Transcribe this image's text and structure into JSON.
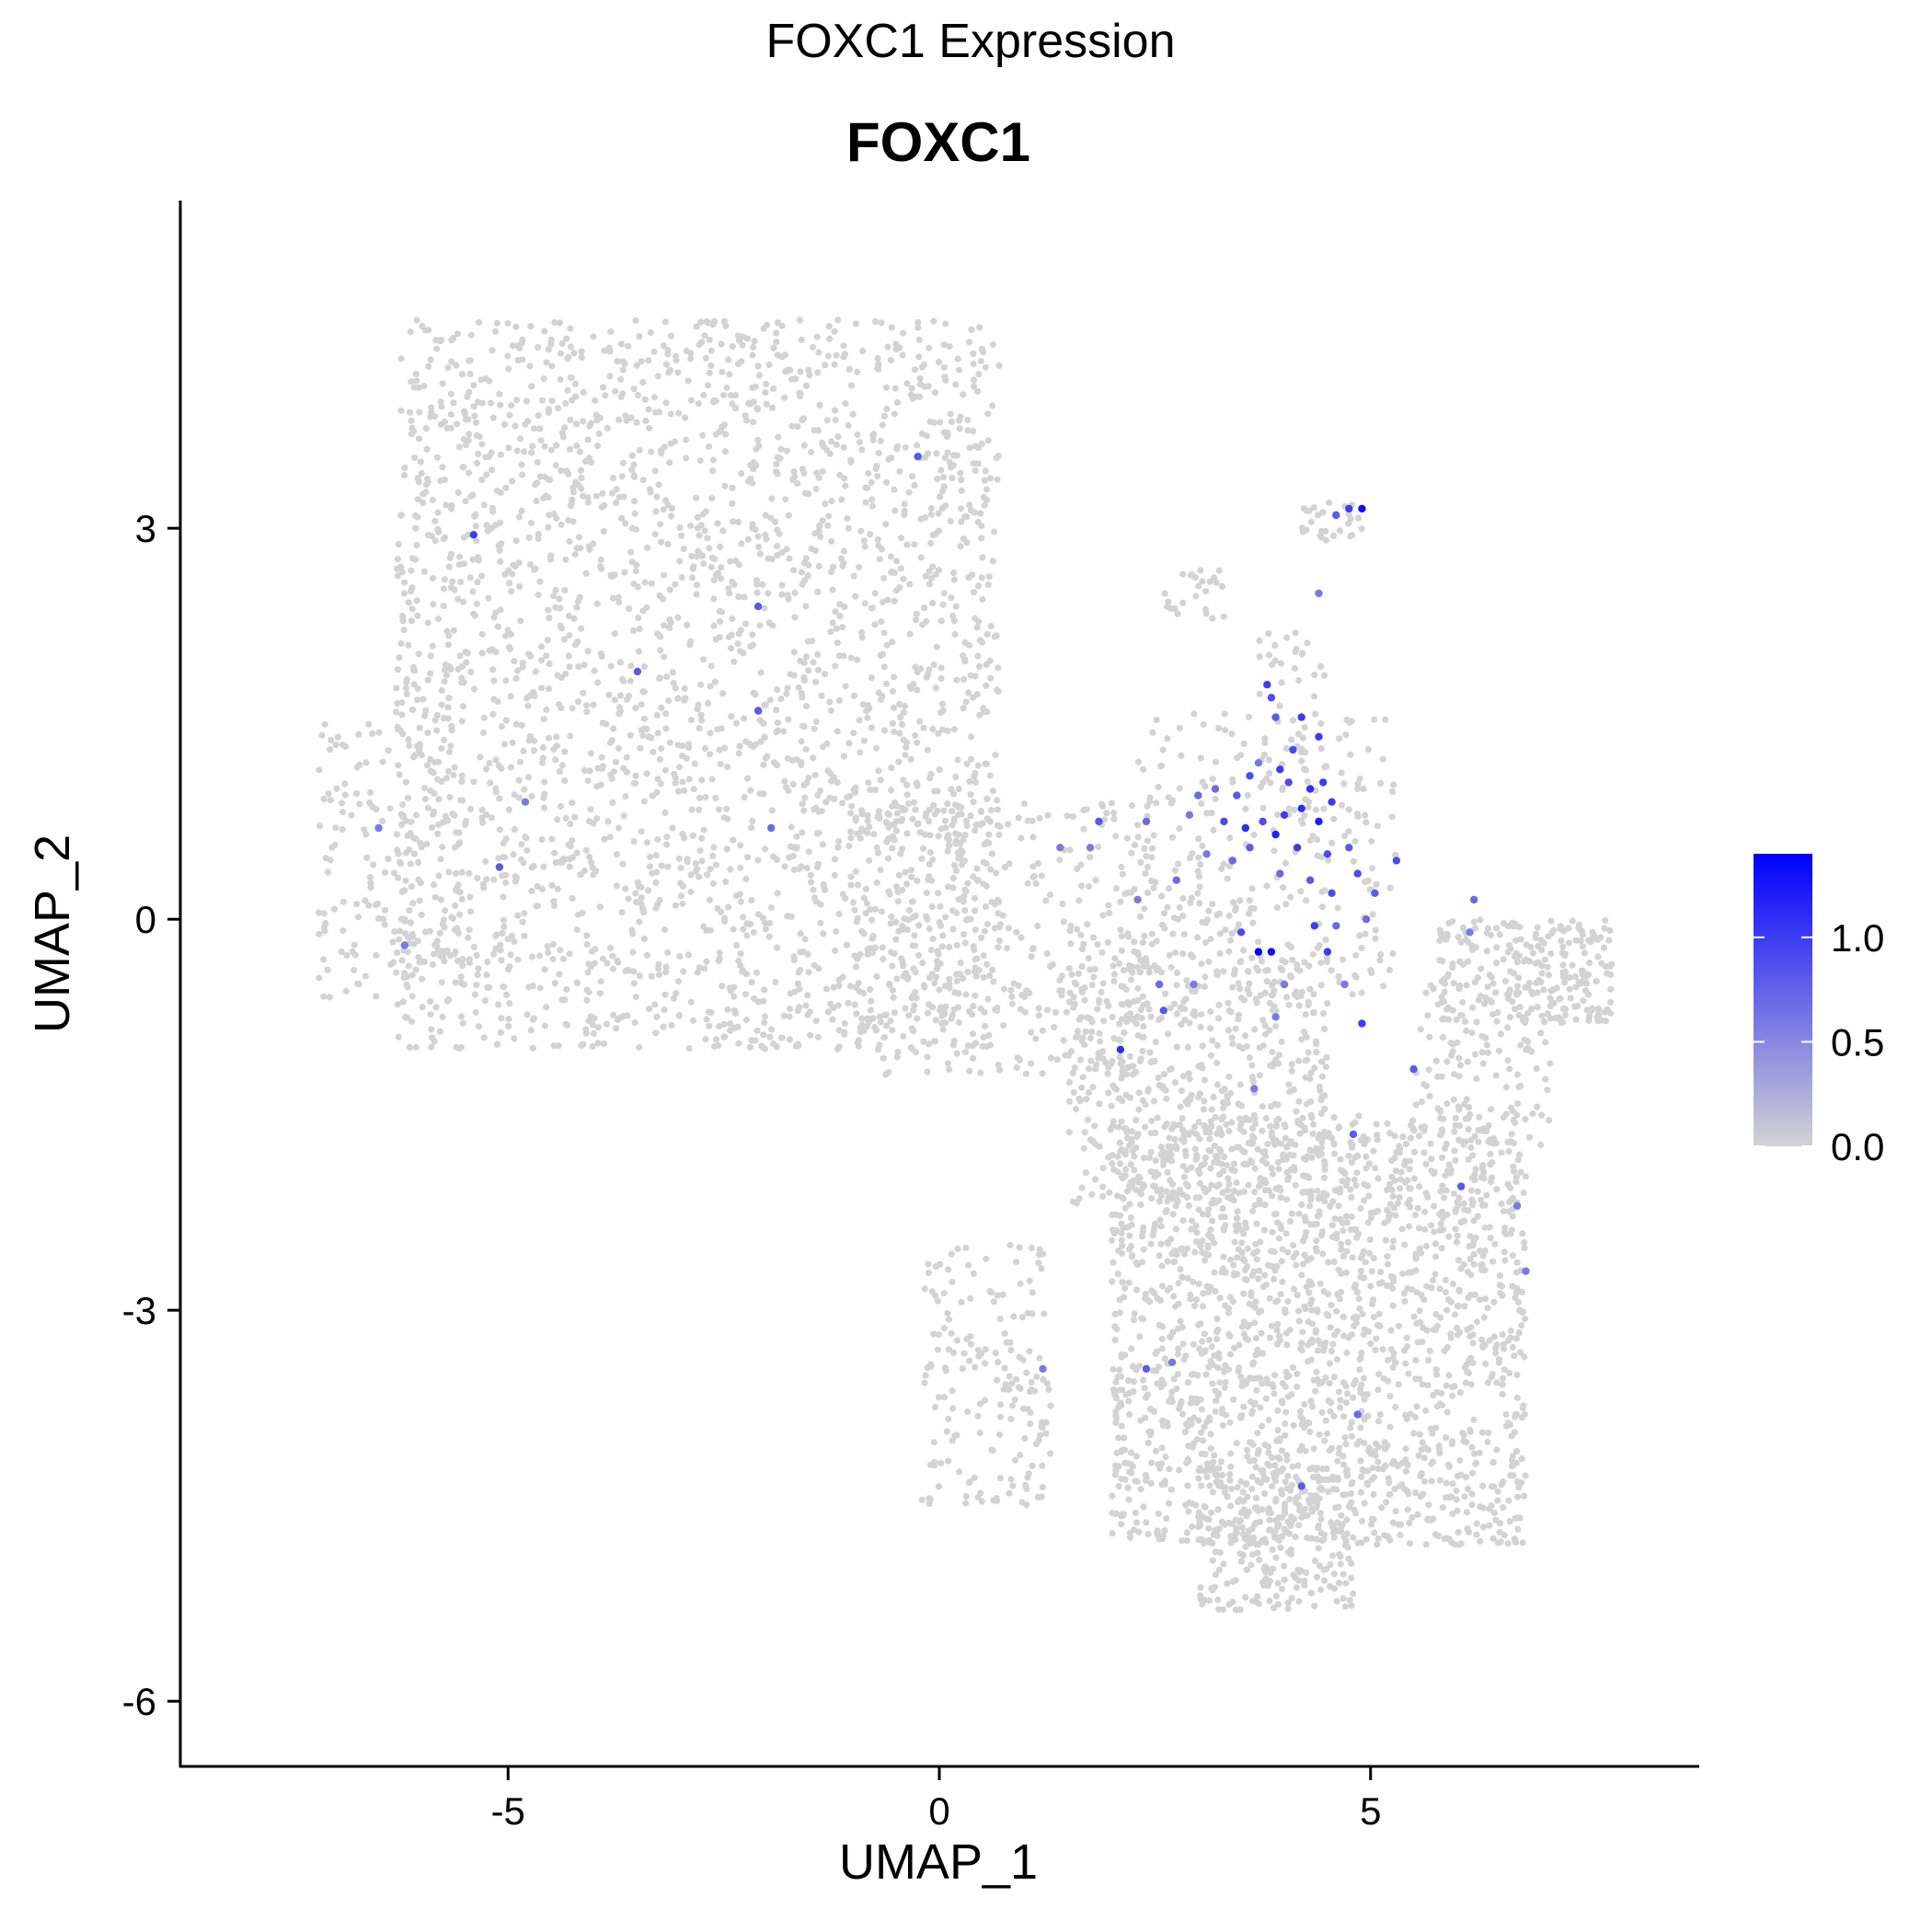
{
  "figure": {
    "suptitle": "FOXC1 Expression"
  },
  "chart_data": {
    "type": "scatter",
    "title": "FOXC1",
    "xlabel": "UMAP_1",
    "ylabel": "UMAP_2",
    "xlim": [
      -8.8,
      8.8
    ],
    "ylim": [
      -6.5,
      5.5
    ],
    "xticks": [
      -5,
      0,
      5
    ],
    "xtick_labels": [
      "-5",
      "0",
      "5"
    ],
    "yticks": [
      -6,
      -3,
      0,
      3
    ],
    "ytick_labels": [
      "-6",
      "-3",
      "0",
      "3"
    ],
    "grid": false,
    "legend": "right",
    "colorbar": {
      "min": 0.0,
      "max": 1.4,
      "ticks": [
        0.0,
        0.5,
        1.0
      ],
      "tick_labels": [
        "0.0",
        "0.5",
        "1.0"
      ],
      "low_color": "#d3d3d3",
      "high_color": "#0000ff"
    },
    "background_regions": [
      {
        "shape": "rect",
        "x": [
          -6.3,
          0.7
        ],
        "y": [
          -1.0,
          4.6
        ],
        "n": 2600
      },
      {
        "shape": "rect",
        "x": [
          -7.2,
          -5.5
        ],
        "y": [
          -0.6,
          1.5
        ],
        "n": 180
      },
      {
        "shape": "rect",
        "x": [
          -1.0,
          2.5
        ],
        "y": [
          -1.2,
          0.9
        ],
        "n": 400
      },
      {
        "shape": "rect",
        "x": [
          2.3,
          5.3
        ],
        "y": [
          -0.6,
          1.6
        ],
        "n": 300
      },
      {
        "shape": "rect",
        "x": [
          1.5,
          4.5
        ],
        "y": [
          -2.2,
          -0.3
        ],
        "n": 500
      },
      {
        "shape": "rect",
        "x": [
          2.0,
          6.8
        ],
        "y": [
          -4.8,
          -1.5
        ],
        "n": 1900
      },
      {
        "shape": "rect",
        "x": [
          3.0,
          4.8
        ],
        "y": [
          -5.3,
          -4.2
        ],
        "n": 250
      },
      {
        "shape": "rect",
        "x": [
          5.5,
          7.1
        ],
        "y": [
          -1.8,
          -0.5
        ],
        "n": 120
      },
      {
        "shape": "rect",
        "x": [
          5.8,
          7.8
        ],
        "y": [
          -0.8,
          0.0
        ],
        "n": 260
      },
      {
        "shape": "rect",
        "x": [
          -0.2,
          1.3
        ],
        "y": [
          -4.5,
          -2.5
        ],
        "n": 180
      },
      {
        "shape": "rect",
        "x": [
          2.6,
          3.3
        ],
        "y": [
          2.3,
          2.7
        ],
        "n": 25
      },
      {
        "shape": "rect",
        "x": [
          4.2,
          4.9
        ],
        "y": [
          2.9,
          3.2
        ],
        "n": 30
      },
      {
        "shape": "rect",
        "x": [
          3.7,
          4.5
        ],
        "y": [
          1.3,
          2.2
        ],
        "n": 30
      }
    ],
    "points": [
      [
        4.9,
        3.15,
        1.3
      ],
      [
        4.75,
        3.15,
        1.0
      ],
      [
        4.6,
        3.1,
        0.8
      ],
      [
        4.4,
        2.5,
        0.6
      ],
      [
        3.8,
        1.8,
        1.0
      ],
      [
        3.85,
        1.7,
        0.9
      ],
      [
        3.9,
        1.55,
        0.8
      ],
      [
        4.2,
        1.55,
        1.0
      ],
      [
        4.4,
        1.4,
        1.0
      ],
      [
        4.1,
        1.3,
        0.9
      ],
      [
        3.7,
        1.2,
        0.6
      ],
      [
        3.95,
        1.15,
        1.0
      ],
      [
        4.05,
        1.05,
        0.9
      ],
      [
        4.3,
        1.0,
        1.1
      ],
      [
        4.45,
        1.05,
        1.0
      ],
      [
        3.6,
        1.1,
        0.9
      ],
      [
        3.45,
        0.95,
        0.8
      ],
      [
        3.2,
        1.0,
        0.7
      ],
      [
        3.0,
        0.95,
        0.7
      ],
      [
        3.3,
        0.75,
        0.9
      ],
      [
        3.55,
        0.7,
        1.1
      ],
      [
        3.75,
        0.75,
        0.9
      ],
      [
        3.9,
        0.65,
        1.2
      ],
      [
        4.0,
        0.8,
        1.0
      ],
      [
        4.2,
        0.85,
        1.1
      ],
      [
        4.4,
        0.75,
        1.2
      ],
      [
        4.55,
        0.9,
        1.0
      ],
      [
        4.15,
        0.55,
        1.0
      ],
      [
        4.5,
        0.5,
        0.9
      ],
      [
        4.75,
        0.55,
        0.8
      ],
      [
        4.85,
        0.35,
        0.9
      ],
      [
        4.55,
        0.2,
        0.9
      ],
      [
        4.3,
        0.3,
        0.8
      ],
      [
        3.95,
        0.35,
        0.7
      ],
      [
        3.6,
        0.55,
        0.8
      ],
      [
        3.4,
        0.45,
        0.7
      ],
      [
        3.1,
        0.5,
        0.6
      ],
      [
        2.9,
        0.8,
        0.6
      ],
      [
        2.4,
        0.75,
        0.7
      ],
      [
        1.85,
        0.75,
        0.8
      ],
      [
        1.4,
        0.55,
        0.6
      ],
      [
        1.75,
        0.55,
        0.6
      ],
      [
        2.3,
        0.15,
        0.6
      ],
      [
        2.75,
        0.3,
        0.7
      ],
      [
        5.3,
        0.45,
        0.9
      ],
      [
        5.05,
        0.2,
        0.8
      ],
      [
        4.95,
        0.0,
        0.7
      ],
      [
        4.6,
        -0.05,
        0.7
      ],
      [
        4.35,
        -0.05,
        1.0
      ],
      [
        4.5,
        -0.25,
        1.0
      ],
      [
        3.7,
        -0.25,
        1.4
      ],
      [
        3.85,
        -0.25,
        1.3
      ],
      [
        3.5,
        -0.1,
        0.9
      ],
      [
        4.0,
        -0.5,
        0.6
      ],
      [
        4.7,
        -0.5,
        0.6
      ],
      [
        4.9,
        -0.8,
        1.0
      ],
      [
        3.9,
        -0.75,
        0.6
      ],
      [
        2.95,
        -0.5,
        0.6
      ],
      [
        2.55,
        -0.5,
        0.7
      ],
      [
        2.6,
        -0.7,
        0.8
      ],
      [
        2.1,
        -1.0,
        1.1
      ],
      [
        5.5,
        -1.15,
        0.8
      ],
      [
        3.65,
        -1.3,
        0.6
      ],
      [
        4.8,
        -1.65,
        0.8
      ],
      [
        6.15,
        -0.1,
        0.6
      ],
      [
        6.2,
        0.15,
        0.7
      ],
      [
        6.7,
        -2.2,
        0.6
      ],
      [
        6.8,
        -2.7,
        0.6
      ],
      [
        6.05,
        -2.05,
        0.8
      ],
      [
        4.85,
        -3.8,
        0.7
      ],
      [
        4.2,
        -4.35,
        0.8
      ],
      [
        2.4,
        -3.45,
        0.8
      ],
      [
        2.7,
        -3.4,
        0.6
      ],
      [
        1.2,
        -3.45,
        0.6
      ],
      [
        -5.4,
        2.95,
        1.0
      ],
      [
        -3.5,
        1.9,
        0.8
      ],
      [
        -2.1,
        2.4,
        0.8
      ],
      [
        -2.1,
        1.6,
        0.8
      ],
      [
        -1.95,
        0.7,
        0.7
      ],
      [
        -4.8,
        0.9,
        0.6
      ],
      [
        -5.1,
        0.4,
        0.8
      ],
      [
        -0.25,
        3.55,
        0.8
      ],
      [
        -6.2,
        -0.2,
        0.6
      ],
      [
        -6.5,
        0.7,
        0.6
      ]
    ]
  }
}
